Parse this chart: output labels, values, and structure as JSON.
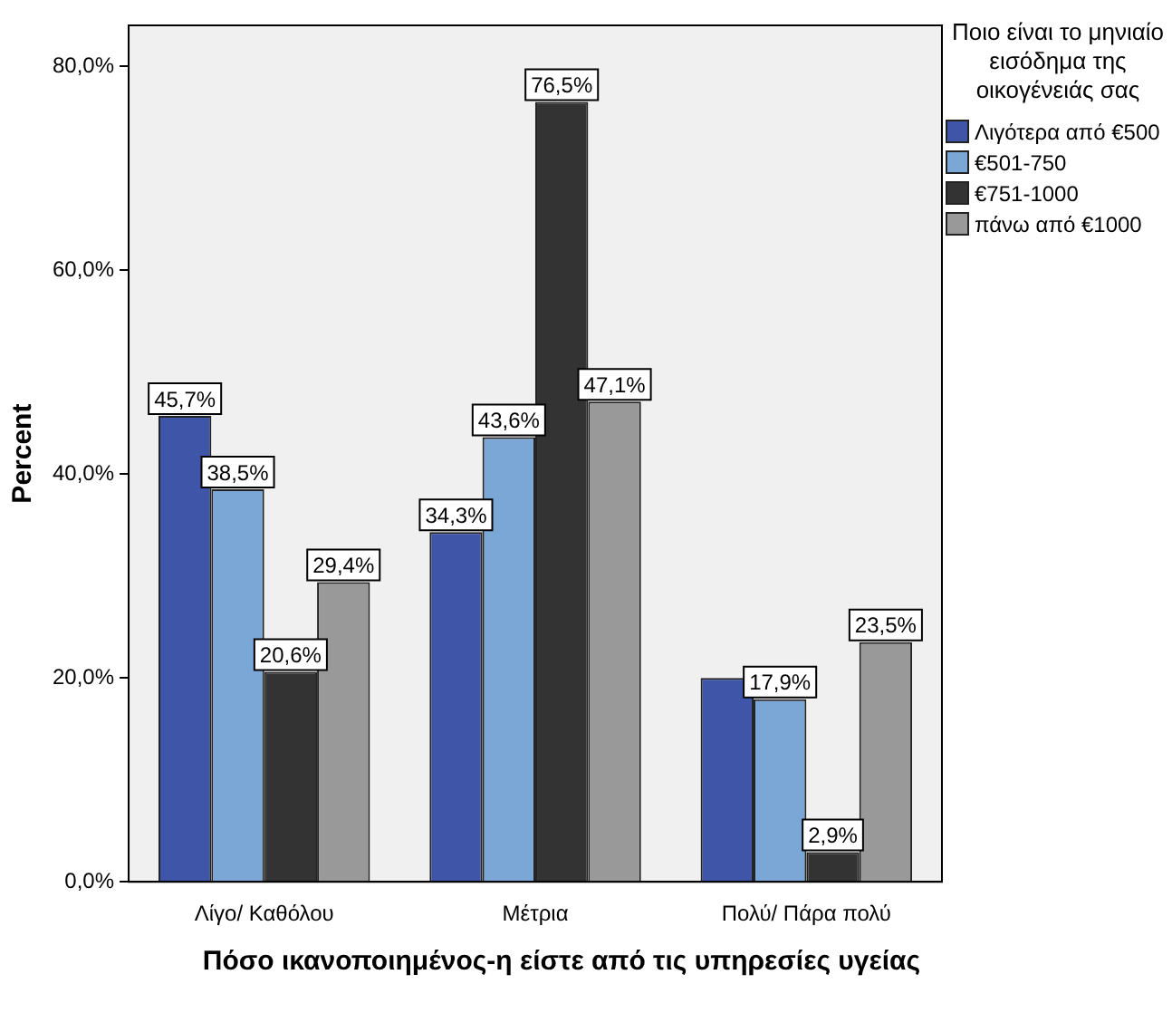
{
  "chart_data": {
    "type": "bar",
    "xlabel": "Πόσο ικανοποιημένος-η είστε από τις υπηρεσίες υγείας",
    "ylabel": "Percent",
    "legend_title": "Ποιο είναι το μηνιαίο εισόδημα της οικογένειάς σας",
    "legend": "right",
    "grid": false,
    "categories": [
      "Λίγο/ Καθόλου",
      "Μέτρια",
      "Πολύ/ Πάρα πολύ"
    ],
    "ylim": [
      0,
      84
    ],
    "yticks": [
      {
        "value": 0,
        "label": "0,0%"
      },
      {
        "value": 20,
        "label": "20,0%"
      },
      {
        "value": 40,
        "label": "40,0%"
      },
      {
        "value": 60,
        "label": "60,0%"
      },
      {
        "value": 80,
        "label": "80,0%"
      }
    ],
    "series": [
      {
        "name": "Λιγότερα από €500",
        "color": "#3e55a8",
        "values": [
          45.7,
          34.3,
          20.0
        ],
        "value_labels": [
          "45,7%",
          "34,3%",
          null
        ]
      },
      {
        "name": "€501-750",
        "color": "#7ba7d7",
        "values": [
          38.5,
          43.6,
          17.9
        ],
        "value_labels": [
          "38,5%",
          "43,6%",
          "17,9%"
        ]
      },
      {
        "name": "€751-1000",
        "color": "#333333",
        "values": [
          20.6,
          76.5,
          2.9
        ],
        "value_labels": [
          "20,6%",
          "76,5%",
          "2,9%"
        ]
      },
      {
        "name": "πάνω από €1000",
        "color": "#999999",
        "values": [
          29.4,
          47.1,
          23.5
        ],
        "value_labels": [
          "29,4%",
          "47,1%",
          "23,5%"
        ]
      }
    ]
  }
}
